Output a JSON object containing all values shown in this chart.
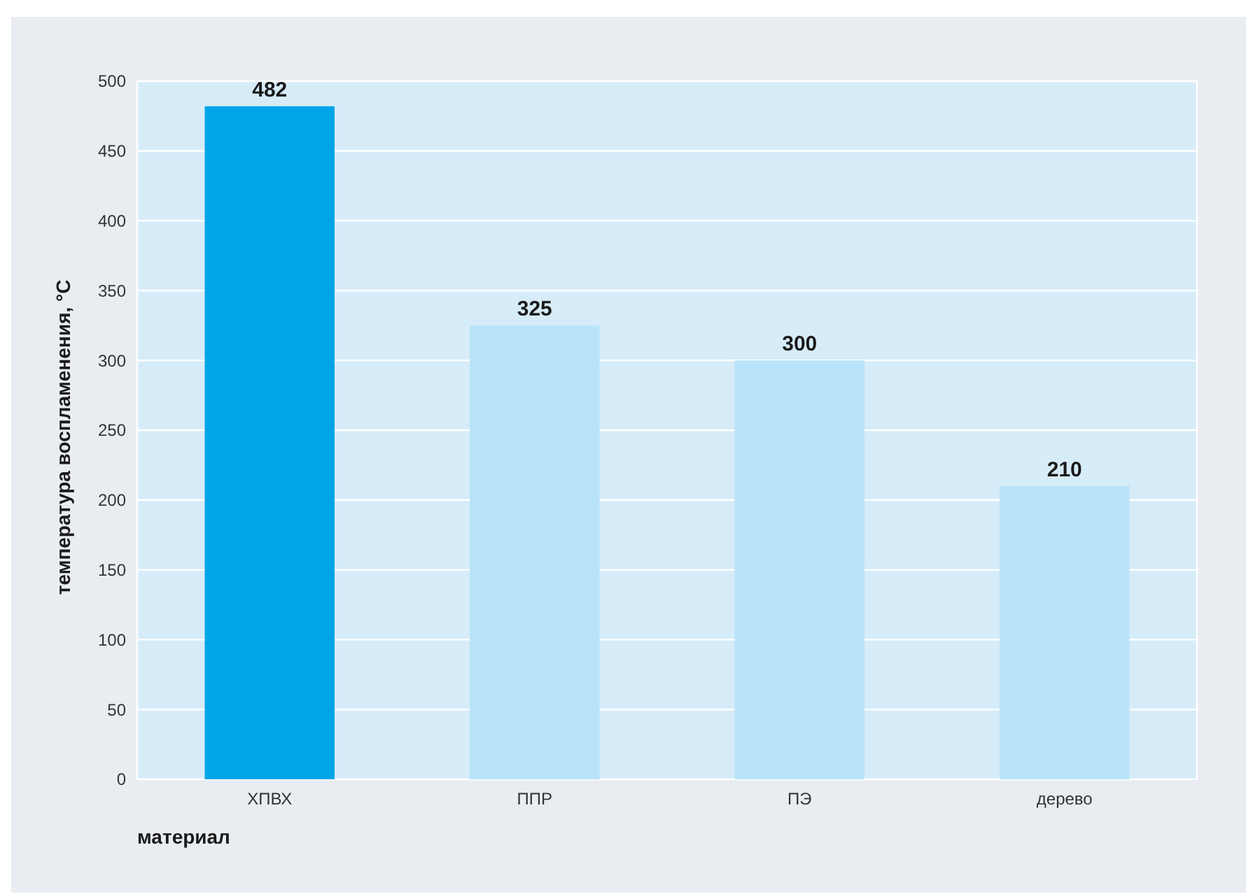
{
  "chart_data": {
    "type": "bar",
    "xlabel": "материал",
    "ylabel": "температура воспламенения, °C",
    "categories": [
      "ХПВХ",
      "ППР",
      "ПЭ",
      "дерево"
    ],
    "values": [
      482,
      325,
      300,
      210
    ],
    "colors": [
      "#00a5e8",
      "#b9e3f8",
      "#b9e3f8",
      "#b9e3f8"
    ],
    "ylim": [
      0,
      500
    ],
    "yticks": [
      0,
      50,
      100,
      150,
      200,
      250,
      300,
      350,
      400,
      450,
      500
    ],
    "grid": "y",
    "data_labels": true
  }
}
